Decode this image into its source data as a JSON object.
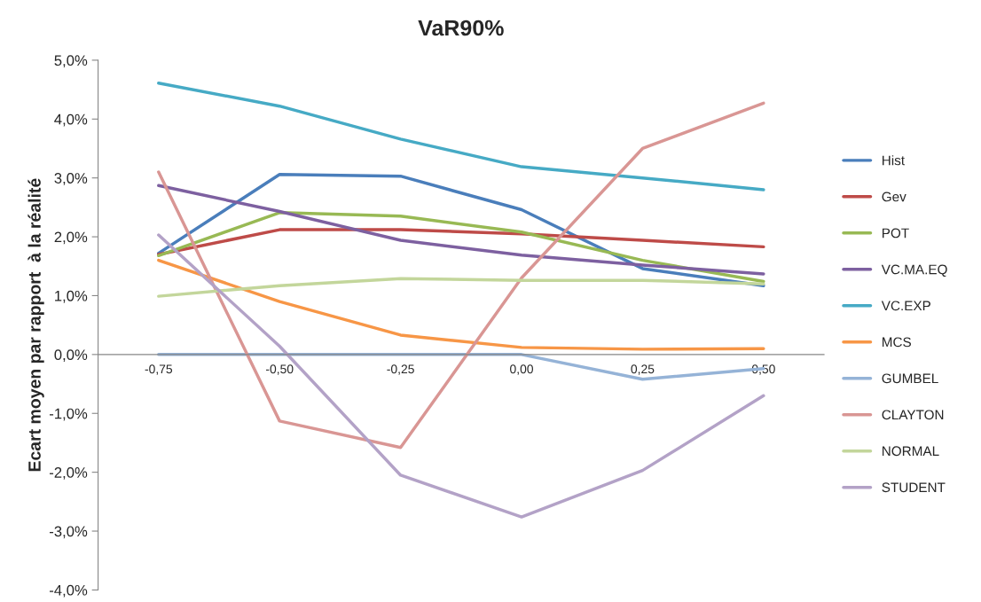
{
  "chart_data": {
    "type": "line",
    "title": "VaR90%",
    "ylabel": "Ecart moyen par rapport  à la réalité",
    "categories": [
      "-0,75",
      "-0,50",
      "-0,25",
      "0,00",
      "0,25",
      "0,50"
    ],
    "ylim": [
      -4,
      5
    ],
    "yticks": [
      {
        "value": -4,
        "label": "-4,0%"
      },
      {
        "value": -3,
        "label": "-3,0%"
      },
      {
        "value": -2,
        "label": "-2,0%"
      },
      {
        "value": -1,
        "label": "-1,0%"
      },
      {
        "value": 0,
        "label": "0,0%"
      },
      {
        "value": 1,
        "label": "1,0%"
      },
      {
        "value": 2,
        "label": "2,0%"
      },
      {
        "value": 3,
        "label": "3,0%"
      },
      {
        "value": 4,
        "label": "4,0%"
      },
      {
        "value": 5,
        "label": "5,0%"
      }
    ],
    "grid": false,
    "legend": "right",
    "marker": "none",
    "line_style": "solid",
    "series": [
      {
        "name": "Hist",
        "color": "#4a7ebb",
        "values": [
          1.72,
          3.06,
          3.03,
          2.46,
          1.46,
          1.17
        ]
      },
      {
        "name": "Gev",
        "color": "#be4b48",
        "values": [
          1.7,
          2.12,
          2.12,
          2.05,
          1.94,
          1.83
        ]
      },
      {
        "name": "POT",
        "color": "#98b954",
        "values": [
          1.68,
          2.41,
          2.35,
          2.08,
          1.6,
          1.24
        ]
      },
      {
        "name": "VC.MA.EQ",
        "color": "#7d60a0",
        "values": [
          2.87,
          2.43,
          1.94,
          1.69,
          1.52,
          1.37
        ]
      },
      {
        "name": "VC.EXP",
        "color": "#46aac5",
        "values": [
          4.61,
          4.22,
          3.66,
          3.19,
          3.0,
          2.8
        ]
      },
      {
        "name": "MCS",
        "color": "#f79646",
        "values": [
          1.6,
          0.9,
          0.33,
          0.12,
          0.09,
          0.1
        ]
      },
      {
        "name": "GUMBEL",
        "color": "#95b3d7",
        "values": [
          0,
          0,
          0,
          0,
          -0.42,
          -0.24
        ]
      },
      {
        "name": "CLAYTON",
        "color": "#d99694",
        "values": [
          3.1,
          -1.13,
          -1.58,
          1.3,
          3.5,
          4.27
        ]
      },
      {
        "name": "NORMAL",
        "color": "#c3d69b",
        "values": [
          0.99,
          1.17,
          1.29,
          1.26,
          1.26,
          1.2
        ]
      },
      {
        "name": "STUDENT",
        "color": "#b3a2c7",
        "values": [
          2.03,
          0.14,
          -2.05,
          -2.76,
          -1.97,
          -0.7
        ]
      }
    ]
  }
}
